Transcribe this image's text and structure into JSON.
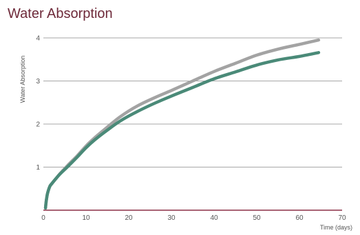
{
  "chart_data": {
    "type": "line",
    "title": "Water Absorption",
    "xlabel": "Time (days)",
    "ylabel": "Water Absorption",
    "xlim": [
      0,
      70
    ],
    "ylim": [
      0,
      4
    ],
    "xticks": [
      0,
      10,
      20,
      30,
      40,
      50,
      60,
      70
    ],
    "yticks": [
      1,
      2,
      3,
      4
    ],
    "grid": "horizontal",
    "legend": "none",
    "colors": {
      "grid": "#8a8a8a",
      "baseline": "#8c2f45",
      "title": "#6e2a3a"
    },
    "series": [
      {
        "color": "#a3a3a3",
        "points": [
          [
            0.5,
            0.05
          ],
          [
            0.6,
            0.15
          ],
          [
            0.8,
            0.3
          ],
          [
            1,
            0.4
          ],
          [
            1.5,
            0.55
          ],
          [
            2,
            0.62
          ],
          [
            3,
            0.74
          ],
          [
            4,
            0.86
          ],
          [
            6,
            1.07
          ],
          [
            8,
            1.27
          ],
          [
            10,
            1.49
          ],
          [
            12,
            1.68
          ],
          [
            15,
            1.93
          ],
          [
            18,
            2.17
          ],
          [
            22,
            2.42
          ],
          [
            26,
            2.61
          ],
          [
            30,
            2.78
          ],
          [
            35,
            3.0
          ],
          [
            40,
            3.22
          ],
          [
            45,
            3.41
          ],
          [
            50,
            3.6
          ],
          [
            55,
            3.74
          ],
          [
            60,
            3.85
          ],
          [
            64.5,
            3.95
          ]
        ]
      },
      {
        "color": "#4a8a78",
        "points": [
          [
            0.5,
            0.05
          ],
          [
            0.6,
            0.15
          ],
          [
            0.8,
            0.3
          ],
          [
            1,
            0.4
          ],
          [
            1.5,
            0.55
          ],
          [
            2,
            0.62
          ],
          [
            3,
            0.74
          ],
          [
            4,
            0.85
          ],
          [
            6,
            1.04
          ],
          [
            8,
            1.24
          ],
          [
            10,
            1.45
          ],
          [
            12,
            1.63
          ],
          [
            15,
            1.86
          ],
          [
            18,
            2.07
          ],
          [
            22,
            2.29
          ],
          [
            26,
            2.48
          ],
          [
            30,
            2.65
          ],
          [
            35,
            2.85
          ],
          [
            40,
            3.05
          ],
          [
            45,
            3.21
          ],
          [
            50,
            3.37
          ],
          [
            55,
            3.49
          ],
          [
            60,
            3.57
          ],
          [
            64.5,
            3.66
          ]
        ]
      }
    ]
  }
}
